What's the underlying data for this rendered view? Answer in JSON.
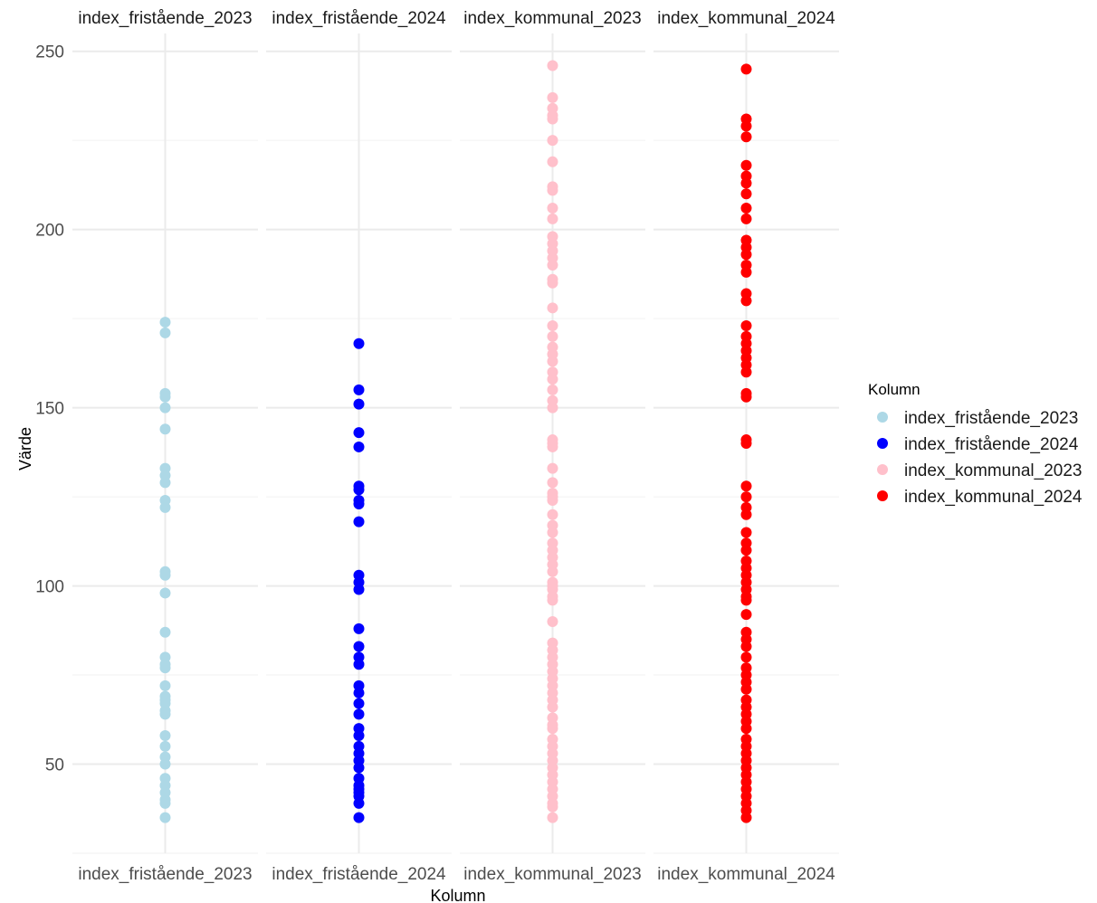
{
  "chart_data": {
    "type": "scatter",
    "layout": "faceted-strip",
    "xlabel": "Kolumn",
    "ylabel": "Värde",
    "ylim": [
      25,
      255
    ],
    "y_ticks": [
      50,
      100,
      150,
      200,
      250
    ],
    "grid": true,
    "legend": {
      "title": "Kolumn",
      "position": "right"
    },
    "series": [
      {
        "name": "index_fristående_2023",
        "color": "#add8e6",
        "values": [
          174,
          171,
          154,
          153,
          150,
          144,
          133,
          131,
          129,
          124,
          122,
          104,
          103,
          98,
          87,
          80,
          78,
          77,
          72,
          69,
          68,
          67,
          65,
          64,
          58,
          55,
          52,
          50,
          46,
          44,
          42,
          40,
          39,
          35
        ]
      },
      {
        "name": "index_fristående_2024",
        "color": "#0000ff",
        "values": [
          168,
          155,
          151,
          143,
          139,
          128,
          127,
          124,
          123,
          118,
          103,
          101,
          99,
          88,
          83,
          80,
          78,
          72,
          70,
          67,
          64,
          60,
          58,
          55,
          53,
          51,
          49,
          46,
          44,
          43,
          42,
          41,
          39,
          35
        ]
      },
      {
        "name": "index_kommunal_2023",
        "color": "#ffc0cb",
        "values": [
          246,
          237,
          234,
          232,
          231,
          225,
          219,
          212,
          211,
          206,
          203,
          198,
          196,
          194,
          192,
          190,
          186,
          185,
          178,
          173,
          170,
          167,
          165,
          163,
          160,
          158,
          155,
          152,
          150,
          141,
          140,
          139,
          133,
          129,
          126,
          125,
          124,
          120,
          117,
          115,
          112,
          110,
          108,
          106,
          104,
          101,
          100,
          99,
          97,
          96,
          90,
          84,
          82,
          80,
          78,
          76,
          74,
          72,
          70,
          68,
          66,
          63,
          61,
          60,
          57,
          55,
          53,
          51,
          49,
          47,
          45,
          43,
          41,
          39,
          38,
          35
        ]
      },
      {
        "name": "index_kommunal_2024",
        "color": "#ff0000",
        "values": [
          245,
          231,
          229,
          226,
          218,
          215,
          213,
          210,
          206,
          203,
          197,
          195,
          193,
          190,
          188,
          182,
          180,
          173,
          170,
          168,
          166,
          164,
          162,
          160,
          154,
          153,
          141,
          140,
          128,
          125,
          122,
          120,
          115,
          112,
          110,
          107,
          105,
          103,
          101,
          99,
          97,
          96,
          92,
          87,
          85,
          83,
          80,
          77,
          75,
          73,
          71,
          68,
          66,
          64,
          62,
          60,
          57,
          55,
          53,
          51,
          49,
          47,
          45,
          43,
          41,
          39,
          37,
          35
        ]
      }
    ]
  }
}
